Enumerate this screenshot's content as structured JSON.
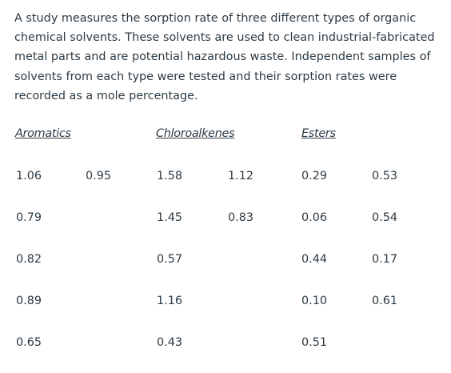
{
  "intro_text": "A study measures the sorption rate of three different types of organic chemical solvents. These solvents are used to clean industrial-fabricated metal parts and are potential hazardous waste. Independent samples of solvents from each type were tested and their sorption rates were recorded as a mole percentage.",
  "table": {
    "headers": [
      "Aromatics",
      "Chloroalkenes",
      "Esters"
    ],
    "rows": [
      [
        "1.06",
        "0.95",
        "1.58",
        "1.12",
        "0.29",
        "0.53"
      ],
      [
        "0.79",
        "",
        "1.45",
        "0.83",
        "0.06",
        "0.54"
      ],
      [
        "0.82",
        "",
        "0.57",
        "",
        "0.44",
        "0.17"
      ],
      [
        "0.89",
        "",
        "1.16",
        "",
        "0.10",
        "0.61"
      ],
      [
        "0.65",
        "",
        "0.43",
        "",
        "0.51",
        ""
      ]
    ]
  }
}
